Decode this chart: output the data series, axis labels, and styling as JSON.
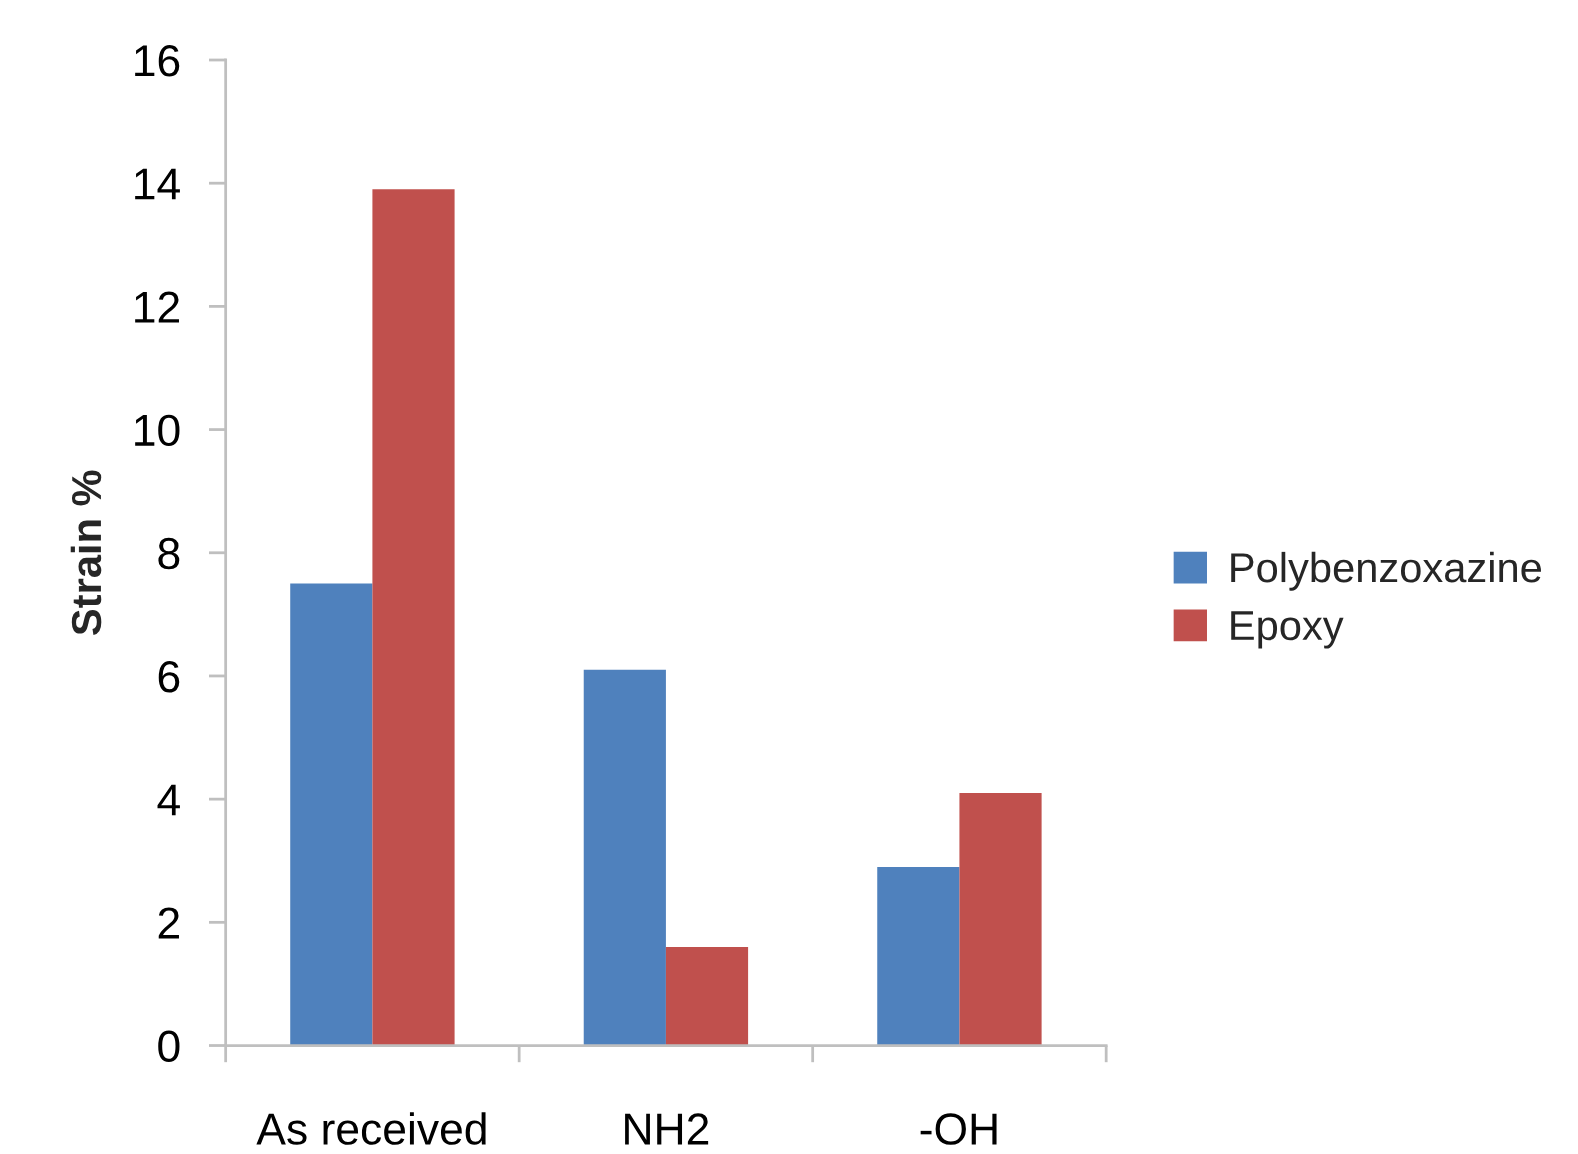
{
  "chart_data": {
    "type": "bar",
    "ylabel": "Strain %",
    "categories": [
      "As received",
      "NH2",
      "-OH"
    ],
    "series": [
      {
        "name": "Polybenzoxazine",
        "color": "#4f81bd",
        "values": [
          7.5,
          6.1,
          2.9
        ]
      },
      {
        "name": "Epoxy",
        "color": "#c0504d",
        "values": [
          13.9,
          1.6,
          4.1
        ]
      }
    ],
    "ylim": [
      0,
      16
    ],
    "yticks": [
      0,
      2,
      4,
      6,
      8,
      10,
      12,
      14,
      16
    ],
    "grid": false,
    "legend": "right"
  }
}
